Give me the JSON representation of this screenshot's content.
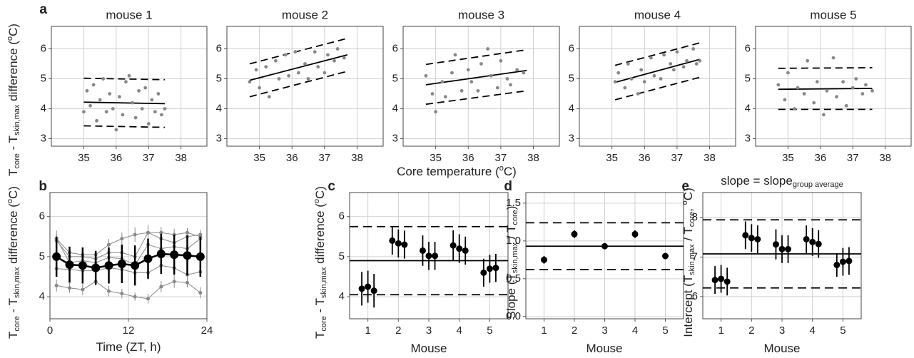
{
  "chart_data": [
    {
      "type": "scatter",
      "label": "a",
      "title": "mouse 1",
      "color": "#888888",
      "grid": true,
      "ylabel": [
        {
          "text": "T"
        },
        {
          "text": "core",
          "shift": "sub"
        },
        {
          "text": " - T"
        },
        {
          "text": "skin,max",
          "shift": "sub"
        },
        {
          "text": " difference ("
        },
        {
          "text": "o",
          "shift": "sup"
        },
        {
          "text": "C)"
        }
      ],
      "xlim": [
        34,
        38.8
      ],
      "xticks": [
        35,
        36,
        37,
        38
      ],
      "ylim": [
        2.75,
        6.75
      ],
      "yticks": [
        3,
        4,
        5,
        6
      ],
      "x": [
        35.0,
        35.1,
        35.2,
        35.3,
        35.4,
        35.5,
        35.6,
        35.7,
        35.8,
        35.9,
        36.0,
        36.1,
        36.2,
        36.3,
        36.4,
        36.5,
        36.6,
        36.7,
        36.8,
        36.9,
        37.0,
        37.1,
        37.2,
        37.3,
        37.4,
        37.5
      ],
      "values": [
        3.9,
        4.6,
        4.1,
        4.8,
        3.6,
        4.3,
        5.0,
        3.9,
        4.5,
        4.0,
        3.3,
        4.4,
        3.8,
        4.9,
        5.1,
        4.2,
        3.7,
        4.6,
        4.0,
        4.7,
        3.5,
        4.3,
        3.9,
        4.5,
        3.8,
        4.0
      ],
      "lines": [
        {
          "x": [
            35.0,
            37.5
          ],
          "values": [
            4.22,
            4.17
          ],
          "dash": false
        },
        {
          "x": [
            35.0,
            37.5
          ],
          "values": [
            5.02,
            4.97
          ],
          "dash": true
        },
        {
          "x": [
            35.0,
            37.5
          ],
          "values": [
            3.43,
            3.38
          ],
          "dash": true
        }
      ]
    },
    {
      "type": "scatter",
      "title": "mouse 2",
      "color": "#888888",
      "grid": true,
      "xlim": [
        34,
        38.8
      ],
      "xticks": [
        35,
        36,
        37,
        38
      ],
      "ylim": [
        2.75,
        6.75
      ],
      "yticks": [
        3,
        4,
        5,
        6
      ],
      "x": [
        34.7,
        34.9,
        35.0,
        35.2,
        35.3,
        35.5,
        35.6,
        35.8,
        35.9,
        36.1,
        36.2,
        36.4,
        36.5,
        36.7,
        36.8,
        37.0,
        37.1,
        37.3,
        37.4,
        37.6
      ],
      "values": [
        4.9,
        5.3,
        4.7,
        5.4,
        4.4,
        5.6,
        5.0,
        5.8,
        5.1,
        5.9,
        5.2,
        5.5,
        5.0,
        5.9,
        5.4,
        5.2,
        5.8,
        5.6,
        6.0,
        5.7
      ],
      "lines": [
        {
          "x": [
            34.7,
            37.7
          ],
          "values": [
            4.95,
            5.8
          ],
          "dash": false
        },
        {
          "x": [
            34.7,
            37.7
          ],
          "values": [
            5.5,
            6.35
          ],
          "dash": true
        },
        {
          "x": [
            34.7,
            37.7
          ],
          "values": [
            4.4,
            5.25
          ],
          "dash": true
        }
      ]
    },
    {
      "type": "scatter",
      "title": "mouse 3",
      "color": "#888888",
      "grid": true,
      "xlabel": [
        {
          "text": "Core temperature ("
        },
        {
          "text": "o",
          "shift": "sup"
        },
        {
          "text": "C)"
        }
      ],
      "xlim": [
        34,
        38.8
      ],
      "xticks": [
        35,
        36,
        37,
        38
      ],
      "ylim": [
        2.75,
        6.75
      ],
      "yticks": [
        3,
        4,
        5,
        6
      ],
      "x": [
        34.7,
        34.9,
        35.0,
        35.2,
        35.3,
        35.5,
        35.6,
        35.8,
        36.0,
        36.1,
        36.3,
        36.4,
        36.6,
        36.7,
        36.9,
        37.0,
        37.2,
        37.3,
        37.5,
        37.7
      ],
      "values": [
        5.1,
        4.5,
        3.9,
        4.9,
        4.4,
        5.2,
        5.8,
        4.6,
        5.3,
        4.9,
        4.6,
        5.5,
        6.0,
        5.1,
        4.7,
        5.6,
        5.0,
        4.8,
        5.3,
        5.2
      ],
      "lines": [
        {
          "x": [
            34.7,
            37.8
          ],
          "values": [
            4.8,
            5.28
          ],
          "dash": false
        },
        {
          "x": [
            34.7,
            37.8
          ],
          "values": [
            5.48,
            5.97
          ],
          "dash": true
        },
        {
          "x": [
            34.7,
            37.8
          ],
          "values": [
            4.15,
            4.6
          ],
          "dash": true
        }
      ]
    },
    {
      "type": "scatter",
      "title": "mouse 4",
      "color": "#888888",
      "grid": true,
      "xlim": [
        34,
        38.8
      ],
      "xticks": [
        35,
        36,
        37,
        38
      ],
      "ylim": [
        2.75,
        6.75
      ],
      "yticks": [
        3,
        4,
        5,
        6
      ],
      "x": [
        35.1,
        35.2,
        35.4,
        35.5,
        35.6,
        35.8,
        35.9,
        36.0,
        36.2,
        36.3,
        36.5,
        36.6,
        36.8,
        36.9,
        37.0,
        37.2,
        37.3,
        37.5,
        37.6,
        37.7
      ],
      "values": [
        4.9,
        5.2,
        4.7,
        5.5,
        5.0,
        4.5,
        5.3,
        4.9,
        5.7,
        5.1,
        5.0,
        5.8,
        5.5,
        5.3,
        5.9,
        5.4,
        5.6,
        6.0,
        5.5,
        5.6
      ],
      "lines": [
        {
          "x": [
            35.1,
            37.7
          ],
          "values": [
            4.88,
            5.65
          ],
          "dash": false
        },
        {
          "x": [
            35.1,
            37.7
          ],
          "values": [
            5.45,
            6.2
          ],
          "dash": true
        },
        {
          "x": [
            35.1,
            37.7
          ],
          "values": [
            4.3,
            5.05
          ],
          "dash": true
        }
      ]
    },
    {
      "type": "scatter",
      "title": "mouse 5",
      "color": "#888888",
      "grid": true,
      "xlim": [
        34,
        38.8
      ],
      "xticks": [
        35,
        36,
        37,
        38
      ],
      "ylim": [
        2.75,
        6.75
      ],
      "yticks": [
        3,
        4,
        5,
        6
      ],
      "x": [
        34.7,
        34.9,
        35.0,
        35.2,
        35.3,
        35.5,
        35.6,
        35.8,
        35.9,
        36.1,
        36.2,
        36.4,
        36.5,
        36.7,
        36.8,
        37.0,
        37.1,
        37.3,
        37.4,
        37.6
      ],
      "values": [
        4.8,
        4.3,
        5.2,
        4.0,
        4.7,
        4.5,
        5.6,
        4.2,
        4.9,
        3.8,
        4.6,
        5.7,
        4.4,
        4.9,
        4.1,
        4.7,
        5.0,
        4.5,
        4.8,
        4.6
      ],
      "lines": [
        {
          "x": [
            34.7,
            37.6
          ],
          "values": [
            4.65,
            4.68
          ],
          "dash": false
        },
        {
          "x": [
            34.7,
            37.6
          ],
          "values": [
            5.35,
            5.37
          ],
          "dash": true
        },
        {
          "x": [
            34.7,
            37.6
          ],
          "values": [
            3.98,
            3.98
          ],
          "dash": true
        }
      ]
    },
    {
      "type": "line",
      "label": "b",
      "grid": true,
      "xlabel": [
        {
          "text": "Time (ZT, h)"
        }
      ],
      "ylabel": [
        {
          "text": "T"
        },
        {
          "text": "core",
          "shift": "sub"
        },
        {
          "text": " - T"
        },
        {
          "text": "skin,max",
          "shift": "sub"
        },
        {
          "text": " difference ("
        },
        {
          "text": "o",
          "shift": "sup"
        },
        {
          "text": "C)"
        }
      ],
      "xlim": [
        0,
        24
      ],
      "xticks": [
        0,
        12,
        24
      ],
      "ylim": [
        3.45,
        6.6
      ],
      "yticks": [
        4,
        5,
        6
      ],
      "x": [
        1,
        3,
        5,
        7,
        9,
        11,
        13,
        15,
        17,
        19,
        21,
        23
      ],
      "series": [
        {
          "color": "#888888",
          "linewidth": 1,
          "markersize": 2.5,
          "values": [
            4.28,
            4.22,
            4.18,
            4.38,
            4.14,
            4.08,
            4.0,
            3.95,
            4.25,
            4.38,
            4.35,
            4.1
          ],
          "errors": [
            0.15,
            0.12,
            0.14,
            0.1,
            0.13,
            0.12,
            0.1,
            0.12,
            0.14,
            0.16,
            0.12,
            0.14
          ]
        },
        {
          "color": "#888888",
          "linewidth": 1,
          "markersize": 2.5,
          "values": [
            4.7,
            4.68,
            4.65,
            4.65,
            4.72,
            4.68,
            4.6,
            4.6,
            4.78,
            4.72,
            4.55,
            4.62
          ],
          "errors": [
            0.12,
            0.14,
            0.12,
            0.12,
            0.14,
            0.15,
            0.12,
            0.18,
            0.15,
            0.14,
            0.12,
            0.1
          ]
        },
        {
          "color": "#888888",
          "linewidth": 1,
          "markersize": 2.5,
          "values": [
            5.45,
            4.85,
            4.9,
            4.85,
            4.98,
            4.95,
            4.8,
            5.3,
            5.2,
            5.25,
            5.2,
            5.45
          ],
          "errors": [
            0.2,
            0.18,
            0.16,
            0.14,
            0.15,
            0.18,
            0.2,
            0.25,
            0.22,
            0.2,
            0.18,
            0.15
          ]
        },
        {
          "color": "#888888",
          "linewidth": 1,
          "markersize": 2.5,
          "values": [
            5.4,
            5.0,
            5.0,
            4.95,
            5.1,
            5.1,
            5.0,
            5.6,
            5.45,
            5.35,
            5.5,
            5.55
          ],
          "errors": [
            0.15,
            0.15,
            0.14,
            0.12,
            0.15,
            0.15,
            0.18,
            0.2,
            0.18,
            0.16,
            0.15,
            0.12
          ]
        },
        {
          "color": "#888888",
          "linewidth": 1,
          "markersize": 2.5,
          "values": [
            5.45,
            5.1,
            5.05,
            5.05,
            5.3,
            5.45,
            5.55,
            5.6,
            5.6,
            5.55,
            5.6,
            5.5
          ],
          "errors": [
            0.12,
            0.14,
            0.12,
            0.12,
            0.14,
            0.15,
            0.18,
            0.15,
            0.14,
            0.15,
            0.12,
            0.1
          ]
        },
        {
          "color": "#000000",
          "linewidth": 2.5,
          "markersize": 6,
          "values": [
            5.0,
            4.8,
            4.78,
            4.72,
            4.78,
            4.82,
            4.78,
            4.95,
            5.07,
            5.05,
            5.03,
            5.0
          ],
          "errors": [
            0.5,
            0.45,
            0.45,
            0.42,
            0.45,
            0.48,
            0.5,
            0.5,
            0.5,
            0.5,
            0.5,
            0.5
          ]
        }
      ]
    },
    {
      "type": "errorbar",
      "label": "c",
      "grid": true,
      "color": "#000000",
      "xlabel": [
        {
          "text": "Mouse"
        }
      ],
      "ylabel": [
        {
          "text": "T"
        },
        {
          "text": "core",
          "shift": "sub"
        },
        {
          "text": " - T"
        },
        {
          "text": "skin,max",
          "shift": "sub"
        },
        {
          "text": " difference ("
        },
        {
          "text": "o",
          "shift": "sup"
        },
        {
          "text": "C)"
        }
      ],
      "xlim": [
        0.4,
        5.6
      ],
      "xticks": [
        1,
        2,
        3,
        4,
        5
      ],
      "ylim": [
        3.45,
        6.6
      ],
      "yticks": [
        4,
        5,
        6
      ],
      "x": [
        0.8,
        1,
        1.2,
        1.8,
        2,
        2.2,
        2.8,
        3,
        3.2,
        3.8,
        4,
        4.2,
        4.8,
        5,
        5.2
      ],
      "values": [
        4.2,
        4.25,
        4.15,
        5.4,
        5.33,
        5.3,
        5.15,
        5.02,
        5.02,
        5.28,
        5.2,
        5.15,
        4.6,
        4.7,
        4.72
      ],
      "errors": [
        0.42,
        0.4,
        0.42,
        0.35,
        0.35,
        0.35,
        0.38,
        0.35,
        0.35,
        0.38,
        0.36,
        0.35,
        0.35,
        0.35,
        0.35
      ],
      "hlines": [
        {
          "value": 4.9,
          "dash": false
        },
        {
          "value": 4.05,
          "dash": true
        },
        {
          "value": 5.75,
          "dash": true
        }
      ]
    },
    {
      "type": "errorbar",
      "label": "d",
      "grid": true,
      "color": "#000000",
      "xlabel": [
        {
          "text": "Mouse"
        }
      ],
      "ylabel": [
        {
          "text": "Slope (T"
        },
        {
          "text": "skin,max",
          "shift": "sub"
        },
        {
          "text": " / T"
        },
        {
          "text": "core",
          "shift": "sub"
        },
        {
          "text": ")"
        }
      ],
      "xlim": [
        0.4,
        5.6
      ],
      "xticks": [
        1,
        2,
        3,
        4,
        5
      ],
      "ylim": [
        -0.03,
        1.64
      ],
      "yticks": [
        {
          "value": 0,
          "label": "0.0"
        },
        {
          "value": 0.5,
          "label": "0.5"
        },
        {
          "value": 1,
          "label": "1.0"
        },
        {
          "value": 1.5,
          "label": "1.5"
        }
      ],
      "x": [
        1,
        2,
        3,
        4,
        5
      ],
      "values": [
        0.75,
        1.09,
        0.93,
        1.09,
        0.8
      ],
      "errors": [
        0.05,
        0.05,
        0.02,
        0.05,
        0.04
      ],
      "hlines": [
        {
          "value": 0.93,
          "dash": false
        },
        {
          "value": 0.62,
          "dash": true
        },
        {
          "value": 1.24,
          "dash": true
        }
      ]
    },
    {
      "type": "errorbar",
      "label": "e",
      "grid": true,
      "color": "#000000",
      "title": [
        {
          "text": "slope = slope"
        },
        {
          "text": "group average",
          "shift": "sub"
        }
      ],
      "xlabel": [
        {
          "text": "Mouse"
        }
      ],
      "ylabel": [
        {
          "text": "Intercept (T"
        },
        {
          "text": "skin,max",
          "shift": "sub"
        },
        {
          "text": " / T"
        },
        {
          "text": "core",
          "shift": "sub"
        },
        {
          "text": ", "
        },
        {
          "text": "o",
          "shift": "sup"
        },
        {
          "text": "C)"
        }
      ],
      "xlim": [
        0.4,
        5.6
      ],
      "xticks": [
        1,
        2,
        3,
        4,
        5
      ],
      "ylim": [
        5.44,
        8.63
      ],
      "yticks": [
        6,
        7,
        8
      ],
      "x": [
        0.8,
        1,
        1.2,
        1.8,
        2,
        2.2,
        2.8,
        3,
        3.2,
        3.8,
        4,
        4.2,
        4.8,
        5,
        5.2
      ],
      "values": [
        6.42,
        6.45,
        6.38,
        7.55,
        7.48,
        7.45,
        7.32,
        7.2,
        7.2,
        7.45,
        7.38,
        7.33,
        6.8,
        6.88,
        6.9
      ],
      "errors": [
        0.35,
        0.35,
        0.35,
        0.35,
        0.35,
        0.35,
        0.38,
        0.35,
        0.35,
        0.35,
        0.35,
        0.35,
        0.3,
        0.35,
        0.35
      ],
      "hlines": [
        {
          "value": 7.08,
          "dash": false
        },
        {
          "value": 6.22,
          "dash": true
        },
        {
          "value": 7.94,
          "dash": true
        }
      ]
    }
  ]
}
